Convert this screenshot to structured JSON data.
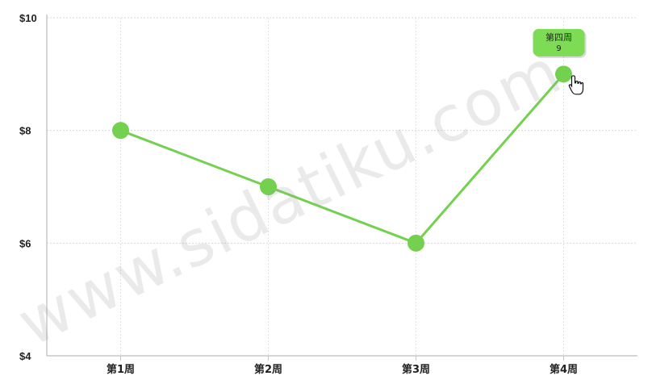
{
  "chart_data": {
    "type": "line",
    "categories": [
      "第1周",
      "第2周",
      "第3周",
      "第4周"
    ],
    "values": [
      8,
      7,
      6,
      9
    ],
    "ylim": [
      4,
      10
    ],
    "y_ticks": [
      "$10",
      "$8",
      "$6",
      "$4"
    ],
    "y_tick_values": [
      10,
      8,
      6,
      4
    ],
    "grid": true,
    "series_color": "#74d04f",
    "tooltip": {
      "category_index": 3,
      "title": "第四周",
      "value": "9",
      "background": "#7ddb56"
    }
  },
  "watermark": {
    "text": "www.sidatiku.com"
  }
}
